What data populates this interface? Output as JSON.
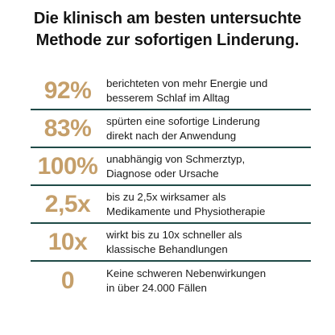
{
  "headline": {
    "line1": "Die klinisch am besten untersuchte",
    "line2": "Methode zur sofortigen Linderung."
  },
  "colors": {
    "accent": "#c59f6a",
    "divider": "#1f4a47",
    "text": "#1a1a1a"
  },
  "stats": [
    {
      "value": "92%",
      "line1": "berichteten von mehr Energie und",
      "line2": "besserem Schlaf im Alltag"
    },
    {
      "value": "83%",
      "line1": "spürten eine sofortige Linderung",
      "line2": "direkt nach der Anwendung"
    },
    {
      "value": "100%",
      "line1": "unabhängig von Schmerztyp,",
      "line2": "Diagnose oder Ursache"
    },
    {
      "value": "2,5x",
      "line1": "bis zu 2,5x wirksamer als",
      "line2": "Medikamente und Physiotherapie"
    },
    {
      "value": "10x",
      "line1": "wirkt bis zu 10x schneller als",
      "line2": "klassische Behandlungen"
    },
    {
      "value": "0",
      "line1": "Keine schweren Nebenwirkungen",
      "line2": "in über 24.000 Fällen"
    }
  ]
}
